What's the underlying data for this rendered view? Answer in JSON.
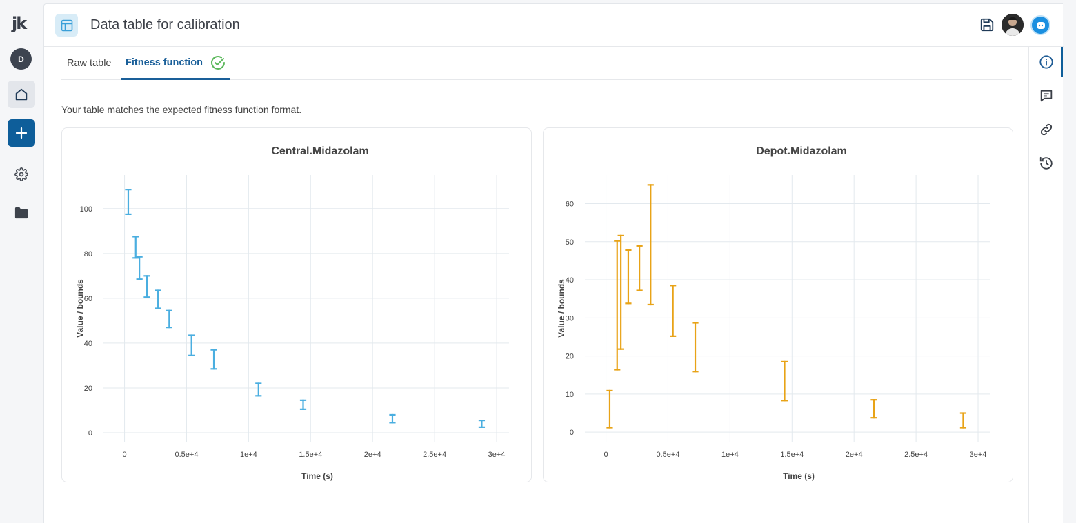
{
  "app": {
    "logo": "jk",
    "user_initial": "D"
  },
  "header": {
    "title": "Data table for calibration"
  },
  "tabs": [
    {
      "label": "Raw table",
      "active": false
    },
    {
      "label": "Fitness function",
      "active": true,
      "status": "check-circle-icon"
    }
  ],
  "message": "Your table matches the expected fitness function format.",
  "colors": {
    "accent": "#1a5f99",
    "series1": "#4aaee0",
    "series2": "#e8a317",
    "check": "#5cb85c"
  },
  "chart_data": [
    {
      "type": "errorbar",
      "title": "Central.Midazolam",
      "xlabel": "Time (s)",
      "ylabel": "Value / bounds",
      "xlim": [
        -1700,
        31000
      ],
      "ylim": [
        -4,
        115
      ],
      "xticks": [
        0,
        5000,
        10000,
        15000,
        20000,
        25000,
        30000
      ],
      "xtick_labels": [
        "0",
        "0.5e+4",
        "1e+4",
        "1.5e+4",
        "2e+4",
        "2.5e+4",
        "3e+4"
      ],
      "yticks": [
        0,
        20,
        40,
        60,
        80,
        100
      ],
      "ytick_labels": [
        "0",
        "20",
        "40",
        "60",
        "80",
        "100"
      ],
      "grid": true,
      "color": "#4aaee0",
      "points": [
        {
          "x": 300,
          "lo": 97.5,
          "hi": 108.5
        },
        {
          "x": 900,
          "lo": 78,
          "hi": 87.5
        },
        {
          "x": 1200,
          "lo": 68.5,
          "hi": 78.5
        },
        {
          "x": 1800,
          "lo": 60.5,
          "hi": 70
        },
        {
          "x": 2700,
          "lo": 55.5,
          "hi": 63.5
        },
        {
          "x": 3600,
          "lo": 47,
          "hi": 54.5
        },
        {
          "x": 5400,
          "lo": 34.5,
          "hi": 43.5
        },
        {
          "x": 7200,
          "lo": 28.5,
          "hi": 37
        },
        {
          "x": 10800,
          "lo": 16.5,
          "hi": 22
        },
        {
          "x": 14400,
          "lo": 10.5,
          "hi": 14.5
        },
        {
          "x": 21600,
          "lo": 4.5,
          "hi": 8
        },
        {
          "x": 28800,
          "lo": 2.5,
          "hi": 5.5
        }
      ]
    },
    {
      "type": "errorbar",
      "title": "Depot.Midazolam",
      "xlabel": "Time (s)",
      "ylabel": "Value / bounds",
      "xlim": [
        -1700,
        31000
      ],
      "ylim": [
        -2.5,
        67.5
      ],
      "xticks": [
        0,
        5000,
        10000,
        15000,
        20000,
        25000,
        30000
      ],
      "xtick_labels": [
        "0",
        "0.5e+4",
        "1e+4",
        "1.5e+4",
        "2e+4",
        "2.5e+4",
        "3e+4"
      ],
      "yticks": [
        0,
        10,
        20,
        30,
        40,
        50,
        60
      ],
      "ytick_labels": [
        "0",
        "10",
        "20",
        "30",
        "40",
        "50",
        "60"
      ],
      "grid": true,
      "color": "#e8a317",
      "points": [
        {
          "x": 300,
          "lo": 1.2,
          "hi": 10.9
        },
        {
          "x": 900,
          "lo": 16.4,
          "hi": 50.2
        },
        {
          "x": 1200,
          "lo": 21.8,
          "hi": 51.6
        },
        {
          "x": 1800,
          "lo": 33.8,
          "hi": 47.8
        },
        {
          "x": 2700,
          "lo": 37.2,
          "hi": 48.9
        },
        {
          "x": 3600,
          "lo": 33.5,
          "hi": 64.9
        },
        {
          "x": 5400,
          "lo": 25.2,
          "hi": 38.5
        },
        {
          "x": 7200,
          "lo": 15.9,
          "hi": 28.7
        },
        {
          "x": 14400,
          "lo": 8.3,
          "hi": 18.5
        },
        {
          "x": 21600,
          "lo": 3.8,
          "hi": 8.5
        },
        {
          "x": 28800,
          "lo": 1.2,
          "hi": 5.0
        }
      ]
    }
  ]
}
